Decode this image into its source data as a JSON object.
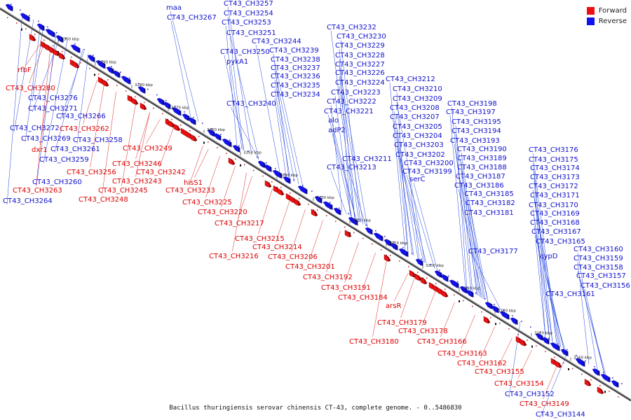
{
  "title": "Bacillus thuringiensis serovar chinensis CT-43, complete genome. - 0..5486830",
  "legend": [
    {
      "name": "Forward",
      "color": "#ee1111"
    },
    {
      "name": "Reverse",
      "color": "#1111ee"
    }
  ],
  "scale_ticks": [
    "3300 kbp",
    "3290 kbp",
    "3280 kbp",
    "3270 kbp",
    "3260 kbp",
    "3250 kbp",
    "3240 kbp",
    "3230 kbp",
    "3220 kbp",
    "3210 kbp",
    "3200 kbp",
    "3190 kbp",
    "3180 kbp",
    "3170 kbp",
    "3160 kbp"
  ],
  "forward_labels": [
    "rfbF",
    "CT43_CH3280",
    "CT43_CH3262",
    "dxr1",
    "CT43_CH3249",
    "CT43_CH3246",
    "CT43_CH3256",
    "CT43_CH3243",
    "CT43_CH3242",
    "hisS1",
    "CT43_CH3263",
    "CT43_CH3245",
    "CT43_CH3233",
    "CT43_CH3248",
    "CT43_CH3225",
    "CT43_CH3220",
    "CT43_CH3217",
    "CT43_CH3215",
    "CT43_CH3214",
    "CT43_CH3216",
    "CT43_CH3206",
    "CT43_CH3201",
    "CT43_CH3192",
    "CT43_CH3191",
    "CT43_CH3184",
    "arsR",
    "CT43_CH3179",
    "CT43_CH3178",
    "CT43_CH3180",
    "CT43_CH3166",
    "CT43_CH3163",
    "CT43_CH3162",
    "CT43_CH3155",
    "CT43_CH3154",
    "CT43_CH3149"
  ],
  "reverse_labels": [
    "maa",
    "CT43_CH3257",
    "CT43_CH3267",
    "CT43_CH3254",
    "CT43_CH3253",
    "CT43_CH3251",
    "CT43_CH3244",
    "CT43_CH3250",
    "CT43_CH3239",
    "pykA1",
    "CT43_CH3238",
    "CT43_CH3237",
    "CT43_CH3236",
    "CT43_CH3235",
    "CT43_CH3234",
    "CT43_CH3240",
    "CT43_CH3232",
    "CT43_CH3230",
    "CT43_CH3229",
    "CT43_CH3228",
    "CT43_CH3227",
    "CT43_CH3226",
    "CT43_CH3224",
    "CT43_CH3223",
    "CT43_CH3222",
    "CT43_CH3221",
    "alo",
    "adP2",
    "CT43_CH3212",
    "CT43_CH3210",
    "CT43_CH3209",
    "CT43_CH3208",
    "CT43_CH3207",
    "CT43_CH3205",
    "CT43_CH3204",
    "CT43_CH3203",
    "CT43_CH3202",
    "CT43_CH3211",
    "CT43_CH3213",
    "CT43_CH3200",
    "CT43_CH3199",
    "serC",
    "CT43_CH3198",
    "CT43_CH3197",
    "CT43_CH3195",
    "CT43_CH3194",
    "CT43_CH3193",
    "CT43_CH3190",
    "CT43_CH3189",
    "CT43_CH3188",
    "CT43_CH3187",
    "CT43_CH3186",
    "CT43_CH3185",
    "CT43_CH3182",
    "CT43_CH3181",
    "CT43_CH3177",
    "CT43_CH3176",
    "CT43_CH3175",
    "CT43_CH3174",
    "CT43_CH3173",
    "CT43_CH3172",
    "CT43_CH3171",
    "CT43_CH3170",
    "CT43_CH3169",
    "CT43_CH3168",
    "CT43_CH3167",
    "CT43_CH3165",
    "CT43_CH3160",
    "cypD",
    "CT43_CH3159",
    "CT43_CH3158",
    "CT43_CH3157",
    "CT43_CH3156",
    "CT43_CH3161",
    "CT43_CH3276",
    "CT43_CH3271",
    "CT43_CH3266",
    "CT43_CH3272",
    "CT43_CH3269",
    "CT43_CH3258",
    "CT43_CH3261",
    "CT43_CH3259",
    "CT43_CH3260",
    "CT43_CH3264",
    "CT43_CH3152",
    "CT43_CH3144"
  ]
}
